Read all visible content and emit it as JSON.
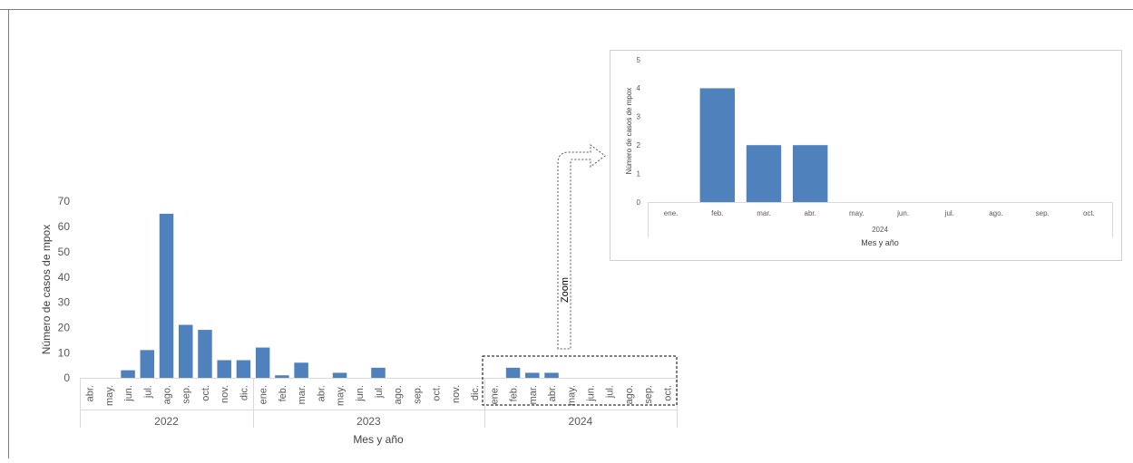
{
  "chart_data": [
    {
      "type": "bar",
      "ylabel": "Número de casos de mpox",
      "xlabel": "Mes y año",
      "ylim": [
        0,
        70
      ],
      "yticks": [
        0,
        10,
        20,
        30,
        40,
        50,
        60,
        70
      ],
      "grid": false,
      "bar_color": "#4F81BD",
      "groups": [
        {
          "label": "2022",
          "categories": [
            "abr.",
            "may.",
            "jun.",
            "jul.",
            "ago.",
            "sep.",
            "oct.",
            "nov.",
            "dic."
          ],
          "values": [
            0,
            0,
            3,
            11,
            65,
            21,
            19,
            7,
            7
          ]
        },
        {
          "label": "2023",
          "categories": [
            "ene.",
            "feb.",
            "mar.",
            "abr.",
            "may.",
            "jun.",
            "jul.",
            "ago.",
            "sep.",
            "oct.",
            "nov.",
            "dic."
          ],
          "values": [
            12,
            1,
            6,
            0,
            2,
            0,
            4,
            0,
            0,
            0,
            0,
            0
          ]
        },
        {
          "label": "2024",
          "categories": [
            "ene.",
            "feb.",
            "mar.",
            "abr.",
            "may.",
            "jun.",
            "jul.",
            "ago.",
            "sep.",
            "oct."
          ],
          "values": [
            0,
            4,
            2,
            2,
            0,
            0,
            0,
            0,
            0,
            0
          ]
        }
      ]
    },
    {
      "type": "bar",
      "ylabel": "Número de casos de mpox",
      "xlabel": "Mes  y  año",
      "ylim": [
        0,
        5
      ],
      "yticks": [
        0,
        1,
        2,
        3,
        4,
        5
      ],
      "grid": false,
      "bar_color": "#4F81BD",
      "groups": [
        {
          "label": "2024",
          "categories": [
            "ene.",
            "feb.",
            "mar.",
            "abr.",
            "may.",
            "jun.",
            "jul.",
            "ago.",
            "sep.",
            "oct."
          ],
          "values": [
            0,
            4,
            2,
            2,
            0,
            0,
            0,
            0,
            0,
            0
          ]
        }
      ]
    }
  ],
  "annotation": {
    "zoom_label": "Zoom"
  }
}
